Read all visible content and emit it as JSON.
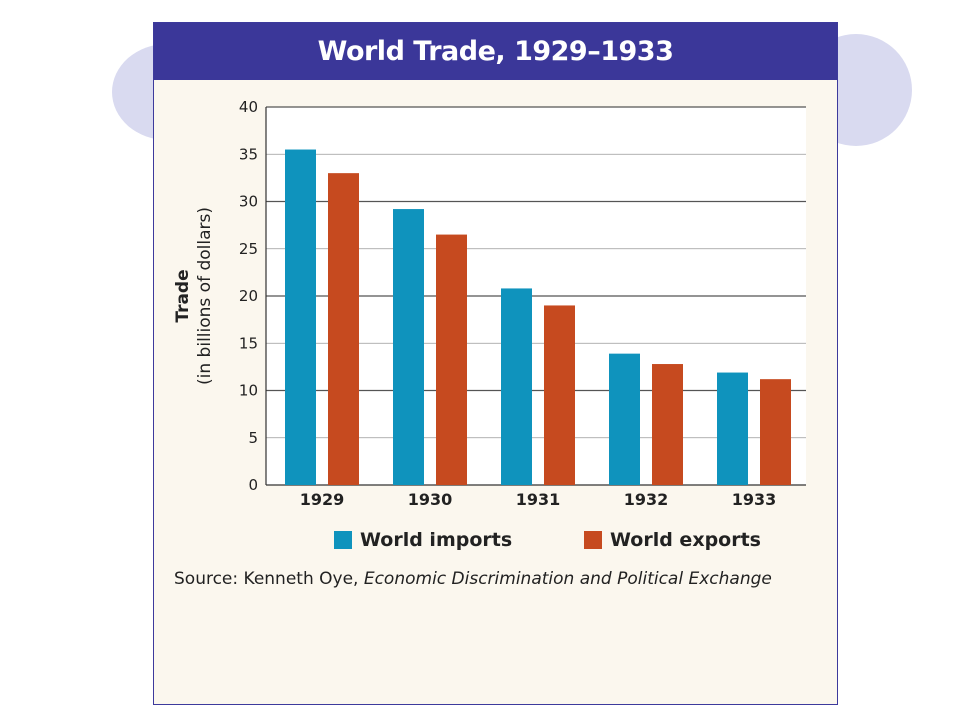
{
  "colors": {
    "imports": "#0f93bd",
    "exports": "#c64a1f",
    "title_bg": "#3b3799"
  },
  "chart_data": {
    "type": "bar",
    "title": "World Trade, 1929–1933",
    "ylabel_line1": "Trade",
    "ylabel_line2": "(in billions of dollars)",
    "xlabel": "",
    "categories": [
      "1929",
      "1930",
      "1931",
      "1932",
      "1933"
    ],
    "series": [
      {
        "name": "World imports",
        "values": [
          35.5,
          29.2,
          20.8,
          13.9,
          11.9
        ]
      },
      {
        "name": "World exports",
        "values": [
          33.0,
          26.5,
          19.0,
          12.8,
          11.2
        ]
      }
    ],
    "ylim": [
      0,
      40
    ],
    "yticks": [
      0,
      5,
      10,
      15,
      20,
      25,
      30,
      35,
      40
    ],
    "grid": true,
    "legend_position": "bottom"
  },
  "legend": {
    "imports_label": "World imports",
    "exports_label": "World exports"
  },
  "source": {
    "prefix": "Source: Kenneth Oye,",
    "work": "Economic Discrimination and Political Exchange"
  }
}
